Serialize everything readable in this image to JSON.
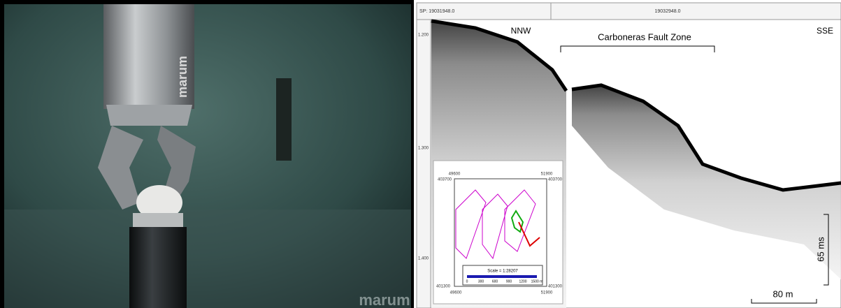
{
  "photo": {
    "logo_top": "marum",
    "logo_bottom": "marum"
  },
  "profile": {
    "shotpoints": [
      "SP: 19031948.0",
      "19032948.0"
    ],
    "depth_labels": [
      "1.200",
      "1.300",
      "1.400"
    ],
    "direction_left": "NNW",
    "direction_right": "SSE",
    "zone_label": "Carboneras Fault Zone",
    "vertical_scale": "65 ms",
    "horizontal_scale": "80 m"
  },
  "inset_map": {
    "top_left_x": "49600",
    "top_right_x": "51900",
    "top_left_y": "403700",
    "top_right_y": "403700",
    "bottom_left_y": "401300",
    "bottom_right_y": "401300",
    "bottom_left_x": "49600",
    "bottom_right_x": "51900",
    "scale_title": "Scale = 1:28207",
    "scale_ticks": [
      "0",
      "300",
      "600",
      "900",
      "1200",
      "1500 m"
    ]
  }
}
